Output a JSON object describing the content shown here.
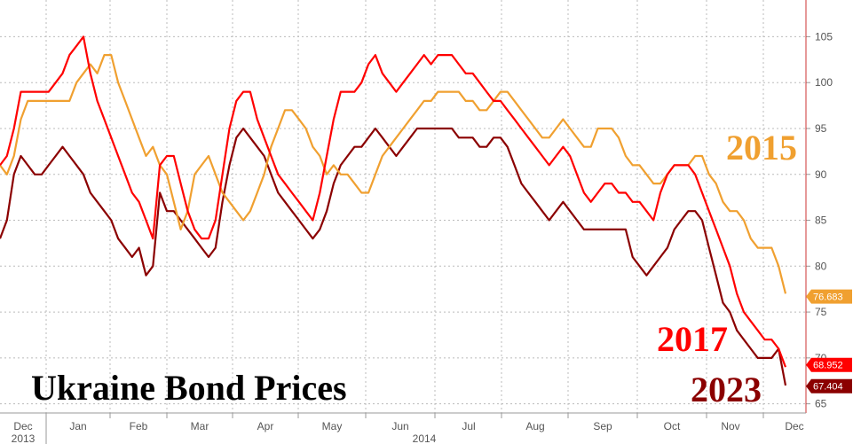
{
  "chart_data": {
    "type": "line",
    "title": "Ukraine Bond Prices",
    "x_axis": {
      "tick_labels": [
        "Dec",
        "Jan",
        "Feb",
        "Mar",
        "Apr",
        "May",
        "Jun",
        "Jul",
        "Aug",
        "Sep",
        "Oct",
        "Nov",
        "Dec"
      ],
      "year_labels": [
        "2013",
        "2014"
      ]
    },
    "ylim": [
      64,
      109
    ],
    "y_ticks": [
      65,
      70,
      75,
      80,
      85,
      90,
      95,
      100,
      105
    ],
    "grid": true,
    "y_axis_side": "right",
    "series": [
      {
        "name": "2015",
        "color": "#f0a030",
        "last_value": "76.683",
        "values": [
          91,
          90,
          92,
          96,
          98,
          98,
          98,
          98,
          98,
          98,
          98,
          100,
          101,
          102,
          101,
          103,
          103,
          100,
          98,
          96,
          94,
          92,
          93,
          91,
          90,
          87,
          84,
          86,
          90,
          91,
          92,
          90,
          88,
          87,
          86,
          85,
          86,
          88,
          90,
          93,
          95,
          97,
          97,
          96,
          95,
          93,
          92,
          90,
          91,
          90,
          90,
          89,
          88,
          88,
          90,
          92,
          93,
          94,
          95,
          96,
          97,
          98,
          98,
          99,
          99,
          99,
          99,
          98,
          98,
          97,
          97,
          98,
          99,
          99,
          98,
          97,
          96,
          95,
          94,
          94,
          95,
          96,
          95,
          94,
          93,
          93,
          95,
          95,
          95,
          94,
          92,
          91,
          91,
          90,
          89,
          89,
          90,
          91,
          91,
          91,
          92,
          92,
          90,
          89,
          87,
          86,
          86,
          85,
          83,
          82,
          82,
          82,
          80,
          77
        ]
      },
      {
        "name": "2017",
        "color": "#ff0000",
        "last_value": "68.952",
        "values": [
          91,
          92,
          95,
          99,
          99,
          99,
          99,
          99,
          100,
          101,
          103,
          104,
          105,
          101,
          98,
          96,
          94,
          92,
          90,
          88,
          87,
          85,
          83,
          91,
          92,
          92,
          89,
          86,
          84,
          83,
          83,
          85,
          90,
          95,
          98,
          99,
          99,
          96,
          94,
          92,
          90,
          89,
          88,
          87,
          86,
          85,
          88,
          92,
          96,
          99,
          99,
          99,
          100,
          102,
          103,
          101,
          100,
          99,
          100,
          101,
          102,
          103,
          102,
          103,
          103,
          103,
          102,
          101,
          101,
          100,
          99,
          98,
          98,
          97,
          96,
          95,
          94,
          93,
          92,
          91,
          92,
          93,
          92,
          90,
          88,
          87,
          88,
          89,
          89,
          88,
          88,
          87,
          87,
          86,
          85,
          88,
          90,
          91,
          91,
          91,
          90,
          88,
          86,
          84,
          82,
          80,
          77,
          75,
          74,
          73,
          72,
          72,
          71,
          69
        ]
      },
      {
        "name": "2023",
        "color": "#8b0000",
        "last_value": "67.404",
        "values": [
          83,
          85,
          90,
          92,
          91,
          90,
          90,
          91,
          92,
          93,
          92,
          91,
          90,
          88,
          87,
          86,
          85,
          83,
          82,
          81,
          82,
          79,
          80,
          88,
          86,
          86,
          85,
          84,
          83,
          82,
          81,
          82,
          87,
          91,
          94,
          95,
          94,
          93,
          92,
          90,
          88,
          87,
          86,
          85,
          84,
          83,
          84,
          86,
          89,
          91,
          92,
          93,
          93,
          94,
          95,
          94,
          93,
          92,
          93,
          94,
          95,
          95,
          95,
          95,
          95,
          95,
          94,
          94,
          94,
          93,
          93,
          94,
          94,
          93,
          91,
          89,
          88,
          87,
          86,
          85,
          86,
          87,
          86,
          85,
          84,
          84,
          84,
          84,
          84,
          84,
          84,
          81,
          80,
          79,
          80,
          81,
          82,
          84,
          85,
          86,
          86,
          85,
          82,
          79,
          76,
          75,
          73,
          72,
          71,
          70,
          70,
          70,
          71,
          67
        ]
      }
    ]
  }
}
